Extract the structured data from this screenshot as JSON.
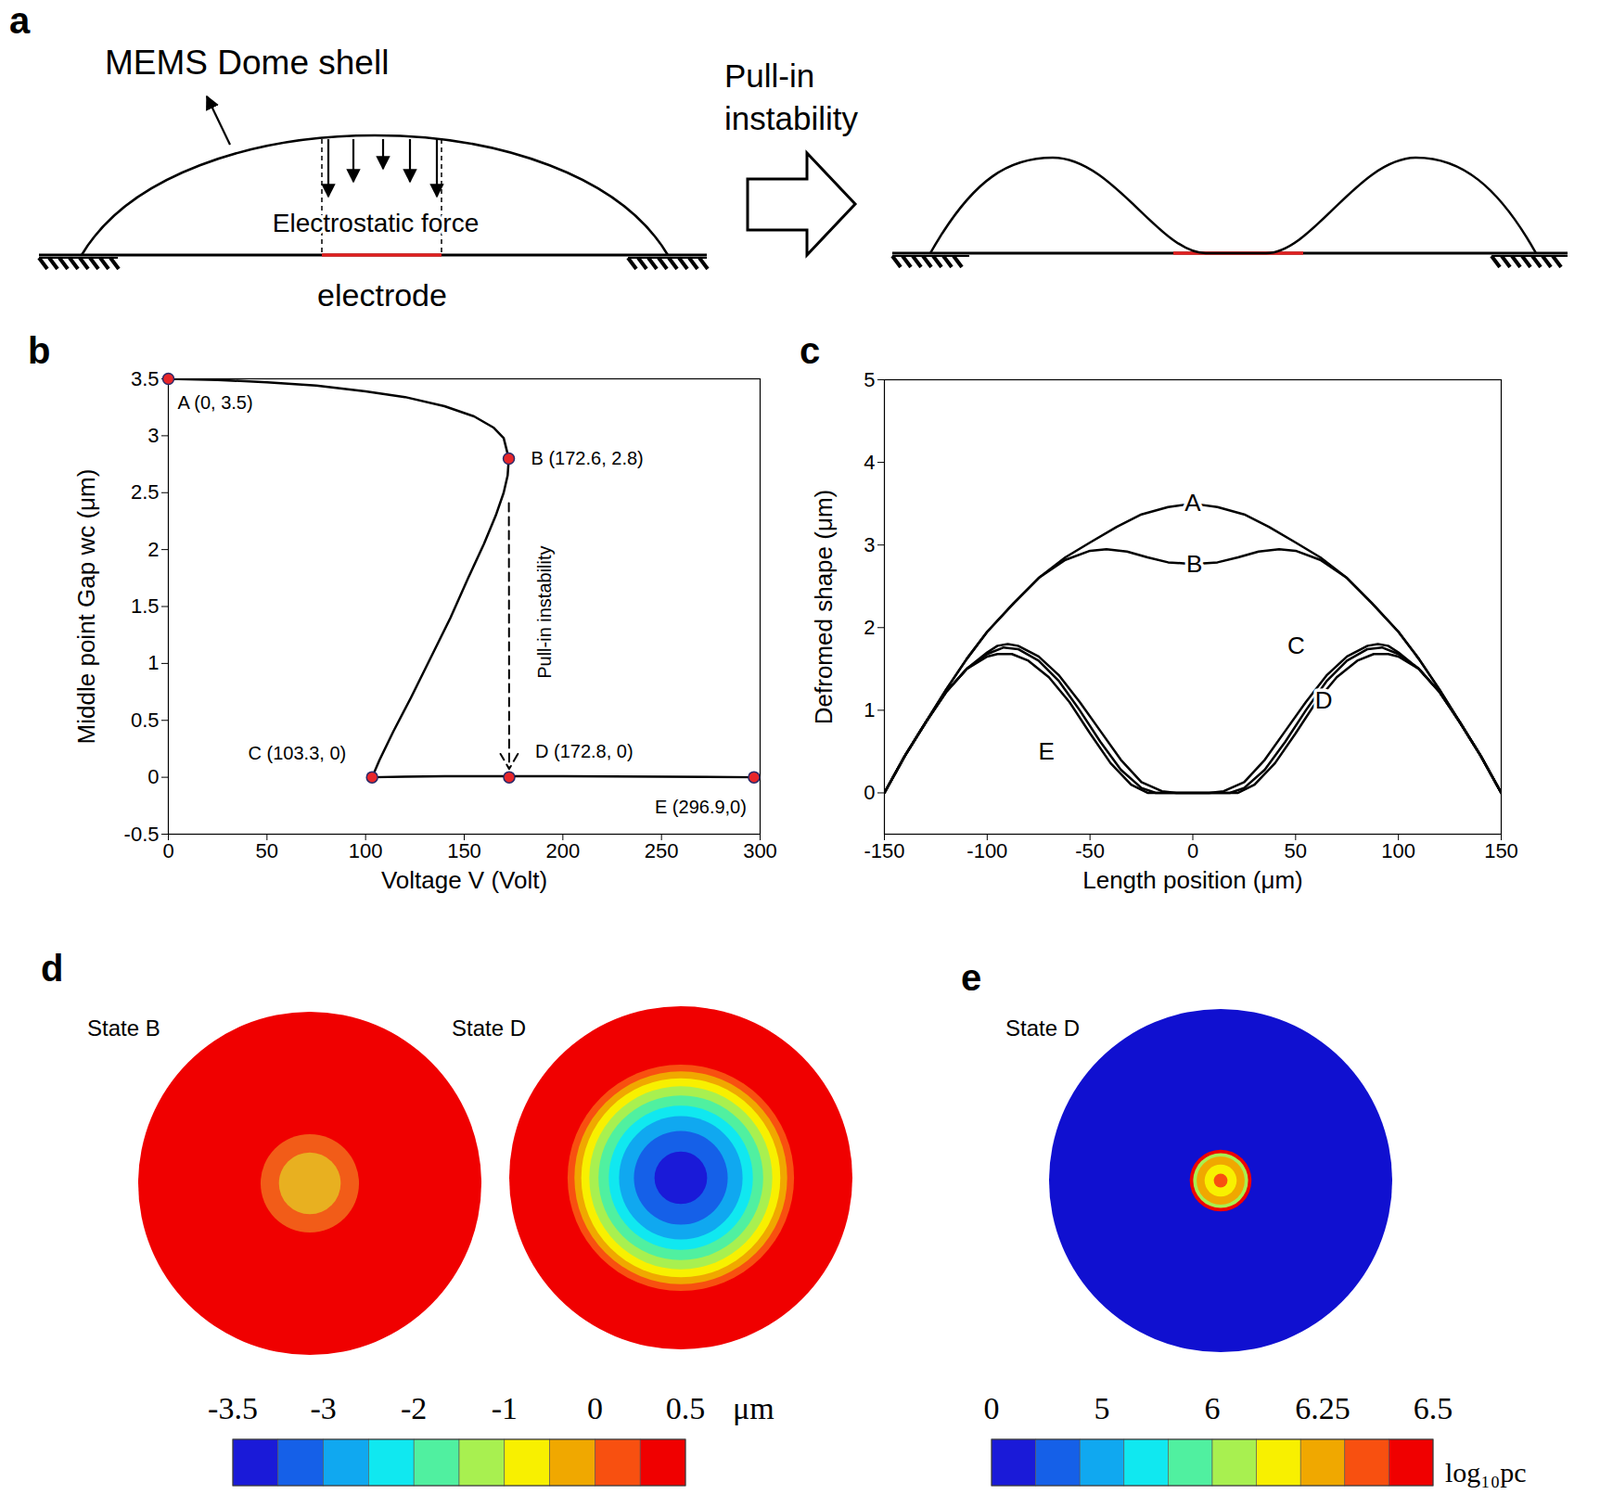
{
  "diagram": {
    "label": "a",
    "title": "MEMS Dome shell",
    "force_label": "Electrostatic force",
    "electrode_label": "electrode",
    "transition_label": "Pull-in instability"
  },
  "chart_data": [
    {
      "type": "line",
      "label": "b",
      "xlabel": "Voltage V (Volt)",
      "ylabel": "Middle point Gap wc (μm)",
      "xlim": [
        0,
        300
      ],
      "ylim": [
        -0.5,
        3.5
      ],
      "xticks": [
        0,
        50,
        100,
        150,
        200,
        250,
        300
      ],
      "yticks": [
        -0.5,
        0,
        0.5,
        1,
        1.5,
        2,
        2.5,
        3,
        3.5
      ],
      "color": "#000000",
      "x": [
        0,
        25,
        50,
        75,
        100,
        120,
        140,
        155,
        165,
        170,
        172.6,
        172,
        170,
        166,
        160,
        152,
        143,
        133,
        123,
        114,
        107,
        103.3,
        120,
        140,
        172.8,
        200,
        250,
        296.9
      ],
      "values": [
        3.5,
        3.49,
        3.47,
        3.44,
        3.39,
        3.34,
        3.26,
        3.17,
        3.07,
        2.98,
        2.8,
        2.65,
        2.5,
        2.3,
        2.05,
        1.75,
        1.4,
        1.05,
        0.7,
        0.4,
        0.15,
        0,
        0.005,
        0.01,
        0.01,
        0.01,
        0.005,
        0
      ],
      "points": {
        "color": "#e8262a",
        "x": [
          0,
          172.6,
          103.3,
          172.8,
          296.9
        ],
        "values": [
          3.5,
          2.8,
          0,
          0,
          0
        ],
        "labels": [
          "A (0, 3.5)",
          "B (172.6, 2.8)",
          "C (103.3, 0)",
          "D (172.8, 0)",
          "E (296.9,0)"
        ]
      },
      "annotation": {
        "text": "Pull-in instability",
        "x": 191,
        "y": 1.45,
        "line_style": "dashed"
      }
    },
    {
      "type": "line",
      "label": "c",
      "xlabel": "Length position (μm)",
      "ylabel": "Defromed shape (μm)",
      "xlim": [
        -150,
        150
      ],
      "ylim": [
        -0.5,
        5
      ],
      "xticks": [
        -150,
        -100,
        -50,
        0,
        50,
        100,
        150
      ],
      "yticks": [
        0,
        1,
        2,
        3,
        4,
        5
      ],
      "series": [
        {
          "color": "#000000",
          "x": [
            -150,
            -140,
            -130,
            -120,
            -110,
            -100,
            -87,
            -75,
            -62,
            -50,
            -37,
            -25,
            -12,
            0,
            12,
            25,
            37,
            50,
            62,
            75,
            87,
            100,
            110,
            120,
            130,
            140,
            150
          ],
          "values": [
            0,
            0.45,
            0.85,
            1.25,
            1.62,
            1.95,
            2.3,
            2.6,
            2.85,
            3.03,
            3.22,
            3.37,
            3.46,
            3.5,
            3.46,
            3.37,
            3.22,
            3.03,
            2.85,
            2.6,
            2.3,
            1.95,
            1.62,
            1.25,
            0.85,
            0.45,
            0
          ]
        },
        {
          "color": "#000000",
          "x": [
            -150,
            -140,
            -130,
            -120,
            -110,
            -100,
            -87,
            -75,
            -62,
            -50,
            -42,
            -32,
            -22,
            -12,
            0,
            12,
            22,
            32,
            42,
            50,
            62,
            75,
            87,
            100,
            110,
            120,
            130,
            140,
            150
          ],
          "values": [
            0,
            0.45,
            0.85,
            1.25,
            1.62,
            1.95,
            2.3,
            2.6,
            2.82,
            2.93,
            2.95,
            2.92,
            2.85,
            2.79,
            2.77,
            2.79,
            2.85,
            2.92,
            2.95,
            2.93,
            2.82,
            2.6,
            2.3,
            1.95,
            1.62,
            1.25,
            0.85,
            0.45,
            0
          ]
        },
        {
          "color": "#000000",
          "x": [
            -150,
            -140,
            -130,
            -120,
            -110,
            -100,
            -95,
            -90,
            -85,
            -75,
            -65,
            -55,
            -45,
            -35,
            -25,
            -15,
            -8,
            0,
            8,
            15,
            25,
            35,
            45,
            55,
            65,
            75,
            85,
            90,
            95,
            100,
            110,
            120,
            130,
            140,
            150
          ],
          "values": [
            0,
            0.45,
            0.85,
            1.22,
            1.5,
            1.7,
            1.78,
            1.8,
            1.78,
            1.65,
            1.42,
            1.1,
            0.75,
            0.4,
            0.13,
            0.02,
            0,
            0,
            0,
            0.02,
            0.13,
            0.4,
            0.75,
            1.1,
            1.42,
            1.65,
            1.78,
            1.8,
            1.78,
            1.7,
            1.5,
            1.22,
            0.85,
            0.45,
            0
          ]
        },
        {
          "color": "#000000",
          "x": [
            -150,
            -140,
            -130,
            -120,
            -110,
            -100,
            -92,
            -85,
            -75,
            -65,
            -55,
            -45,
            -35,
            -25,
            -18,
            0,
            18,
            25,
            35,
            45,
            55,
            65,
            75,
            85,
            92,
            100,
            110,
            120,
            130,
            140,
            150
          ],
          "values": [
            0,
            0.45,
            0.85,
            1.22,
            1.5,
            1.68,
            1.76,
            1.74,
            1.6,
            1.35,
            1.0,
            0.62,
            0.28,
            0.06,
            0,
            0,
            0,
            0.06,
            0.28,
            0.62,
            1.0,
            1.35,
            1.6,
            1.74,
            1.76,
            1.68,
            1.5,
            1.22,
            0.85,
            0.45,
            0
          ]
        },
        {
          "color": "#000000",
          "x": [
            -150,
            -140,
            -130,
            -120,
            -110,
            -100,
            -95,
            -88,
            -80,
            -70,
            -60,
            -50,
            -40,
            -30,
            -22,
            0,
            22,
            30,
            40,
            50,
            60,
            70,
            80,
            88,
            95,
            100,
            110,
            120,
            130,
            140,
            150
          ],
          "values": [
            0,
            0.45,
            0.85,
            1.22,
            1.5,
            1.65,
            1.68,
            1.68,
            1.6,
            1.4,
            1.1,
            0.72,
            0.36,
            0.1,
            0,
            0,
            0,
            0.1,
            0.36,
            0.72,
            1.1,
            1.4,
            1.6,
            1.68,
            1.68,
            1.65,
            1.5,
            1.22,
            0.85,
            0.45,
            0
          ]
        }
      ],
      "annotations": [
        {
          "text": "A",
          "x": 0,
          "y": 3.51
        },
        {
          "text": "B",
          "x": 0.7,
          "y": 2.76
        },
        {
          "text": "C",
          "x": 50.3,
          "y": 1.78
        },
        {
          "text": "D",
          "x": 63.7,
          "y": 1.11
        },
        {
          "text": "E",
          "x": -71.2,
          "y": 0.5
        }
      ]
    }
  ],
  "maps": [
    {
      "label": "d",
      "panels": [
        {
          "title": "State B",
          "radius": 150,
          "color": "#f00000",
          "rings": [
            {
              "r": 43,
              "color": "#f25c18"
            },
            {
              "r": 27,
              "color": "#e8b020"
            }
          ]
        },
        {
          "title": "State D",
          "radius": 150,
          "color": "#f00000",
          "rings": [
            {
              "r": 99,
              "color": "#f85010"
            },
            {
              "r": 93,
              "color": "#f0a800"
            },
            {
              "r": 87,
              "color": "#f8f000"
            },
            {
              "r": 80,
              "color": "#a8f050"
            },
            {
              "r": 72,
              "color": "#50f0a0"
            },
            {
              "r": 63,
              "color": "#10e8f0"
            },
            {
              "r": 54,
              "color": "#10a8f0"
            },
            {
              "r": 41,
              "color": "#1560e8"
            },
            {
              "r": 23,
              "color": "#1a1ad8"
            }
          ]
        }
      ],
      "colorbar": {
        "ticks": [
          -3.5,
          -3,
          -2,
          -1,
          0,
          0.5
        ],
        "unit": "μm",
        "colors": [
          "#1a1ad8",
          "#1560e8",
          "#10a8f0",
          "#10e8f0",
          "#50f0a0",
          "#a8f050",
          "#f8f000",
          "#f0a800",
          "#f85010",
          "#f00000"
        ]
      }
    },
    {
      "label": "e",
      "panels": [
        {
          "title": "State D",
          "radius": 150,
          "color": "#1010d0",
          "rings": [
            {
              "r": 27,
              "color": "#f00000"
            },
            {
              "r": 24,
              "color": "#a8f050"
            },
            {
              "r": 21,
              "color": "#f0a800"
            },
            {
              "r": 14,
              "color": "#f8f000"
            },
            {
              "r": 6,
              "color": "#f85010"
            }
          ]
        }
      ],
      "colorbar": {
        "ticks": [
          0,
          5,
          6,
          6.25,
          6.5
        ],
        "unit": "log₁₀pc",
        "colors": [
          "#1a1ad8",
          "#1560e8",
          "#10a8f0",
          "#10e8f0",
          "#50f0a0",
          "#a8f050",
          "#f8f000",
          "#f0a800",
          "#f85010",
          "#f00000"
        ]
      }
    }
  ]
}
